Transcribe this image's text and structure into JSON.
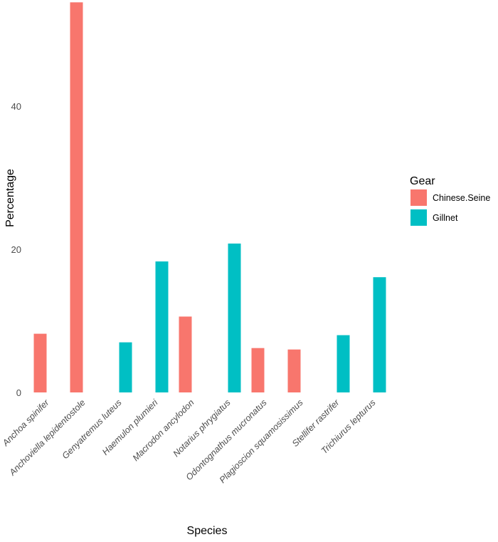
{
  "chart_data": {
    "type": "bar",
    "title": "",
    "xlabel": "Species",
    "ylabel": "Percentage",
    "ylim": [
      0,
      55
    ],
    "yticks": [
      0,
      20,
      40
    ],
    "grid": false,
    "legend": {
      "title": "Gear",
      "position": "right"
    },
    "categories": [
      "Anchoa spinifer",
      "Anchoviella lepidentostole",
      "Genyatremus luteus",
      "Haemulon plumieri",
      "Macrodon ancylodon",
      "Notarius phrygiatus",
      "Odontognathus mucronatus",
      "Plagioscion squamosissimus",
      "Stellifer rastrifer",
      "Trichiurus lepturus"
    ],
    "series": [
      {
        "name": "Chinese.Seine",
        "color": "#F8766D",
        "values": [
          8.2,
          54.5,
          null,
          null,
          10.6,
          null,
          6.2,
          6.0,
          null,
          null
        ]
      },
      {
        "name": "Gillnet",
        "color": "#00BFC4",
        "values": [
          null,
          null,
          7.0,
          18.3,
          null,
          20.8,
          null,
          null,
          8.0,
          16.1
        ]
      }
    ]
  }
}
